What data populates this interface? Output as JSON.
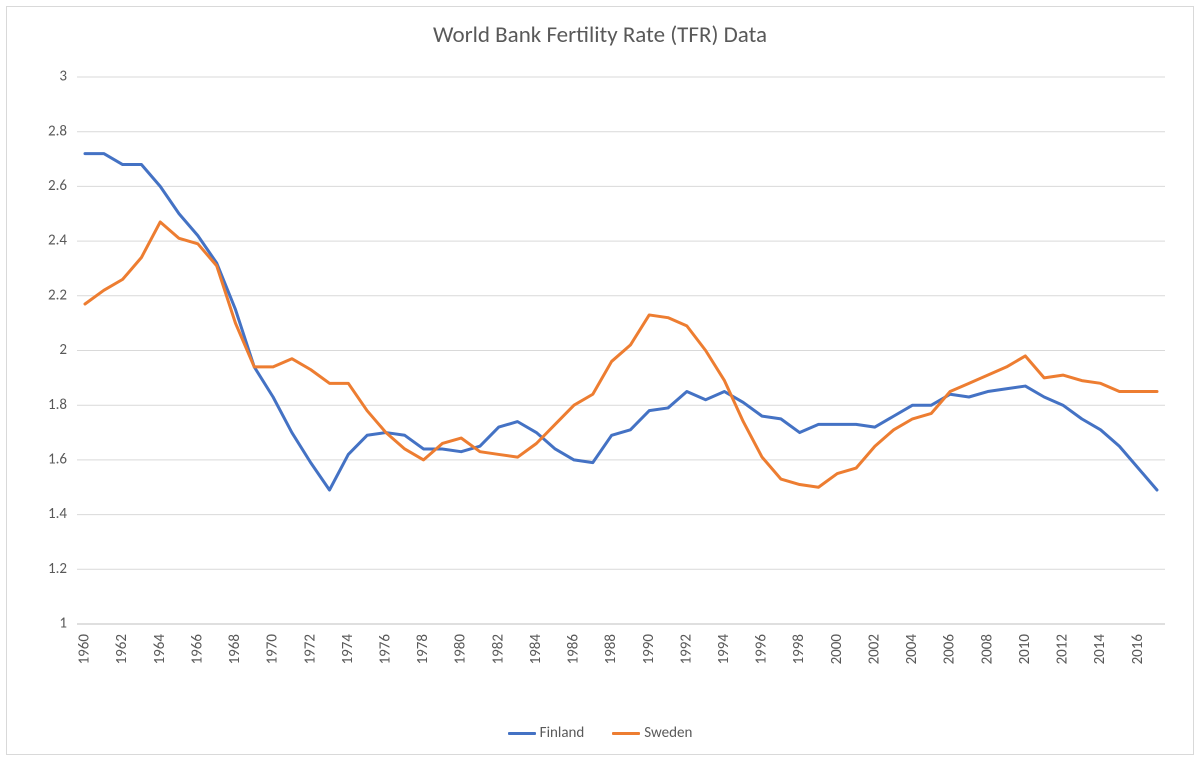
{
  "chart": {
    "type": "line",
    "title": "World Bank Fertility Rate (TFR) Data",
    "title_fontsize": 23,
    "title_color": "#595959",
    "background_color": "#ffffff",
    "border_color": "#d9d9d9",
    "grid_color": "#d9d9d9",
    "axis_line_color": "#bfbfbf",
    "tick_label_color": "#595959",
    "tick_label_fontsize": 15,
    "line_width": 3,
    "y_axis": {
      "min": 1,
      "max": 3,
      "tick_step": 0.2,
      "ticks": [
        1,
        1.2,
        1.4,
        1.6,
        1.8,
        2,
        2.2,
        2.4,
        2.6,
        2.8,
        3
      ]
    },
    "x_axis": {
      "categories": [
        1960,
        1961,
        1962,
        1963,
        1964,
        1965,
        1966,
        1967,
        1968,
        1969,
        1970,
        1971,
        1972,
        1973,
        1974,
        1975,
        1976,
        1977,
        1978,
        1979,
        1980,
        1981,
        1982,
        1983,
        1984,
        1985,
        1986,
        1987,
        1988,
        1989,
        1990,
        1991,
        1992,
        1993,
        1994,
        1995,
        1996,
        1997,
        1998,
        1999,
        2000,
        2001,
        2002,
        2003,
        2004,
        2005,
        2006,
        2007,
        2008,
        2009,
        2010,
        2011,
        2012,
        2013,
        2014,
        2015,
        2016,
        2017
      ],
      "tick_labels": [
        1960,
        1962,
        1964,
        1966,
        1968,
        1970,
        1972,
        1974,
        1976,
        1978,
        1980,
        1982,
        1984,
        1986,
        1988,
        1990,
        1992,
        1994,
        1996,
        1998,
        2000,
        2002,
        2004,
        2006,
        2008,
        2010,
        2012,
        2014,
        2016
      ],
      "label_rotation": -90
    },
    "series": [
      {
        "name": "Finland",
        "color": "#4472c4",
        "values": [
          2.72,
          2.72,
          2.68,
          2.68,
          2.6,
          2.5,
          2.42,
          2.32,
          2.15,
          1.94,
          1.83,
          1.7,
          1.59,
          1.49,
          1.62,
          1.69,
          1.7,
          1.69,
          1.64,
          1.64,
          1.63,
          1.65,
          1.72,
          1.74,
          1.7,
          1.64,
          1.6,
          1.59,
          1.69,
          1.71,
          1.78,
          1.79,
          1.85,
          1.82,
          1.85,
          1.81,
          1.76,
          1.75,
          1.7,
          1.73,
          1.73,
          1.73,
          1.72,
          1.76,
          1.8,
          1.8,
          1.84,
          1.83,
          1.85,
          1.86,
          1.87,
          1.83,
          1.8,
          1.75,
          1.71,
          1.65,
          1.57,
          1.49
        ]
      },
      {
        "name": "Sweden",
        "color": "#ed7d31",
        "values": [
          2.17,
          2.22,
          2.26,
          2.34,
          2.47,
          2.41,
          2.39,
          2.31,
          2.1,
          1.94,
          1.94,
          1.97,
          1.93,
          1.88,
          1.88,
          1.78,
          1.7,
          1.64,
          1.6,
          1.66,
          1.68,
          1.63,
          1.62,
          1.61,
          1.66,
          1.73,
          1.8,
          1.84,
          1.96,
          2.02,
          2.13,
          2.12,
          2.09,
          2.0,
          1.89,
          1.74,
          1.61,
          1.53,
          1.51,
          1.5,
          1.55,
          1.57,
          1.65,
          1.71,
          1.75,
          1.77,
          1.85,
          1.88,
          1.91,
          1.94,
          1.98,
          1.9,
          1.91,
          1.89,
          1.88,
          1.85,
          1.85,
          1.85
        ]
      }
    ],
    "legend": {
      "position": "bottom",
      "items": [
        "Finland",
        "Sweden"
      ]
    }
  }
}
